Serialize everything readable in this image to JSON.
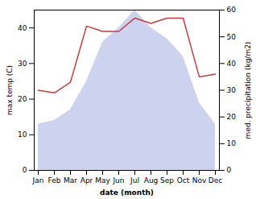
{
  "chart_data": {
    "type": "area",
    "categories": [
      "Jan",
      "Feb",
      "Mar",
      "Apr",
      "May",
      "Jun",
      "Jul",
      "Aug",
      "Sep",
      "Oct",
      "Nov",
      "Dec"
    ],
    "series": [
      {
        "type": "area",
        "color": "#b8c0e8",
        "values": [
          13,
          14,
          17,
          25,
          36,
          40,
          45,
          40,
          37,
          32,
          19,
          13
        ]
      },
      {
        "type": "line",
        "axis": "y2",
        "color": "#c04040",
        "values": [
          30,
          29,
          33,
          54,
          52,
          52,
          57,
          55,
          57,
          57,
          35,
          36
        ]
      }
    ],
    "xlabel": "date (month)",
    "ylabel": "max temp (C)",
    "y2label": "med. precipitation (kg/m2)",
    "ylim": [
      0,
      45
    ],
    "yticks": [
      0,
      10,
      20,
      30,
      40
    ],
    "y2lim": [
      0,
      60
    ],
    "y2ticks": [
      0,
      10,
      20,
      30,
      40,
      50,
      60
    ],
    "grid": false
  }
}
